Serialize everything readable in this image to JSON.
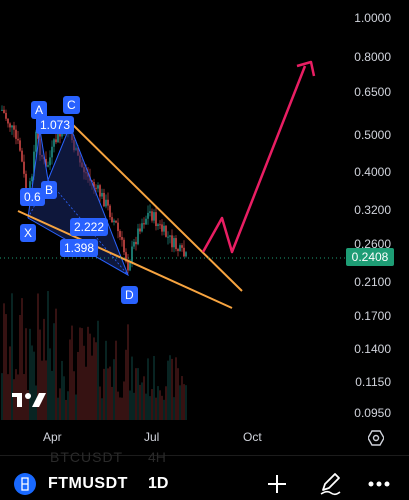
{
  "symbol": {
    "name": "FTMUSDT",
    "interval": "1D",
    "ghost_name": "BTCUSDT",
    "ghost_interval": "4H"
  },
  "price_axis": {
    "ticks": [
      "1.0000",
      "0.8000",
      "0.6500",
      "0.5000",
      "0.4000",
      "0.3200",
      "0.2600",
      "0.2100",
      "0.1700",
      "0.1400",
      "0.1150",
      "0.0950"
    ],
    "current_price": "0.2408",
    "current_price_color": "#1e9d75"
  },
  "time_axis": {
    "ticks": [
      "Apr",
      "Jul",
      "Oct"
    ]
  },
  "pattern_labels": {
    "a": "A",
    "c": "C",
    "ratio_ac": "1.073",
    "ratio_xb": "0.6",
    "b": "B",
    "x": "X",
    "ratio_bd": "2.222",
    "ratio_xd": "1.398",
    "d": "D"
  },
  "colors": {
    "wedge_lines": "#f7a440",
    "projection_arrow": "#e91e63",
    "pattern_fill": "#1a2a6c",
    "label_bg": "#2962ff",
    "candle_up": "#26a69a",
    "candle_down": "#ef5350"
  },
  "icons": {
    "logo": "tradingview-logo",
    "settings": "settings-icon",
    "add": "plus-icon",
    "draw": "pencil-icon",
    "more": "more-dots-icon",
    "symbol": "fantom-icon"
  }
}
